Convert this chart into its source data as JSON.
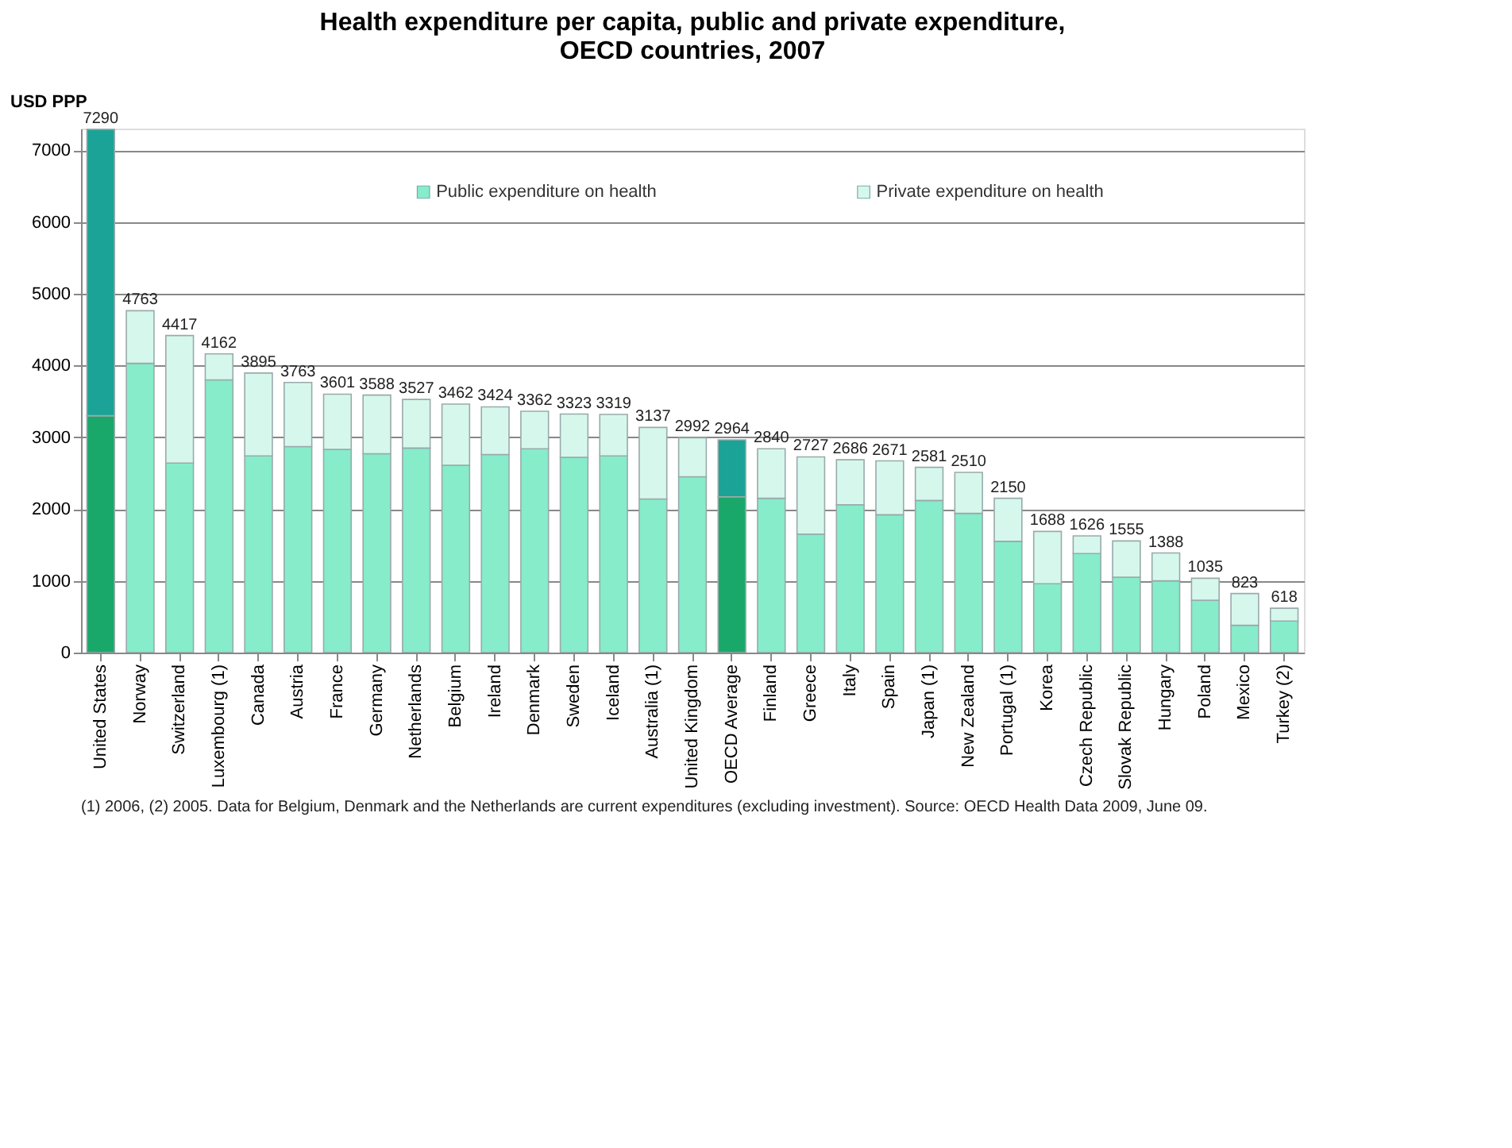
{
  "chart_data": {
    "type": "bar",
    "stacked": true,
    "title": "Health expenditure per capita, public and private expenditure,\nOECD countries, 2007",
    "ylabel": "USD PPP",
    "categories": [
      "United States",
      "Norway",
      "Switzerland",
      "Luxembourg (1)",
      "Canada",
      "Austria",
      "France",
      "Germany",
      "Netherlands",
      "Belgium",
      "Ireland",
      "Denmark",
      "Sweden",
      "Iceland",
      "Australia (1)",
      "United Kingdom",
      "OECD Average",
      "Finland",
      "Greece",
      "Italy",
      "Spain",
      "Japan (1)",
      "New Zealand",
      "Portugal (1)",
      "Korea",
      "Czech Republic",
      "Slovak Republic",
      "Hungary",
      "Poland",
      "Mexico",
      "Turkey (2)"
    ],
    "series": [
      {
        "name": "Public expenditure on health",
        "color": "#86ecca",
        "colors": [
          "#1aa86a",
          "#86ecca",
          "#86ecca",
          "#86ecca",
          "#86ecca",
          "#86ecca",
          "#86ecca",
          "#86ecca",
          "#86ecca",
          "#86ecca",
          "#86ecca",
          "#86ecca",
          "#86ecca",
          "#86ecca",
          "#86ecca",
          "#86ecca",
          "#1aa86a",
          "#86ecca",
          "#86ecca",
          "#86ecca",
          "#86ecca",
          "#86ecca",
          "#86ecca",
          "#86ecca",
          "#86ecca",
          "#86ecca",
          "#86ecca",
          "#86ecca",
          "#86ecca",
          "#86ecca",
          "#86ecca"
        ],
        "values": [
          3300,
          4030,
          2640,
          3800,
          2740,
          2870,
          2830,
          2770,
          2850,
          2610,
          2760,
          2840,
          2720,
          2740,
          2140,
          2450,
          2170,
          2150,
          1650,
          2060,
          1920,
          2120,
          1940,
          1550,
          960,
          1380,
          1050,
          1000,
          730,
          380,
          440
        ]
      },
      {
        "name": "Private expenditure on health",
        "color": "#d6f8ec",
        "colors": [
          "#1aa396",
          "#d6f8ec",
          "#d6f8ec",
          "#d6f8ec",
          "#d6f8ec",
          "#d6f8ec",
          "#d6f8ec",
          "#d6f8ec",
          "#d6f8ec",
          "#d6f8ec",
          "#d6f8ec",
          "#d6f8ec",
          "#d6f8ec",
          "#d6f8ec",
          "#d6f8ec",
          "#d6f8ec",
          "#1aa396",
          "#d6f8ec",
          "#d6f8ec",
          "#d6f8ec",
          "#d6f8ec",
          "#d6f8ec",
          "#d6f8ec",
          "#d6f8ec",
          "#d6f8ec",
          "#d6f8ec",
          "#d6f8ec",
          "#d6f8ec",
          "#d6f8ec",
          "#d6f8ec",
          "#d6f8ec"
        ],
        "values": [
          3990,
          733,
          1777,
          362,
          1155,
          893,
          771,
          818,
          677,
          852,
          664,
          522,
          603,
          579,
          997,
          542,
          794,
          690,
          1077,
          626,
          751,
          461,
          570,
          600,
          728,
          246,
          505,
          388,
          305,
          443,
          178
        ]
      }
    ],
    "totals": [
      "7290",
      "4763",
      "4417",
      "4162",
      "3895",
      "3763",
      "3601",
      "3588",
      "3527",
      "3462",
      "3424",
      "3362",
      "3323",
      "3319",
      "3137",
      "2992",
      "2964",
      "2840",
      "2727",
      "2686",
      "2671",
      "2581",
      "2510",
      "2150",
      "1688",
      "1626",
      "1555",
      "1388",
      "1035",
      "823",
      "618"
    ],
    "ylim": [
      0,
      7300
    ],
    "yticks": [
      0,
      1000,
      2000,
      3000,
      4000,
      5000,
      6000,
      7000
    ],
    "grid": "y",
    "legend": "top",
    "annotations": [
      "(1) 2006, (2) 2005.  Data for Belgium, Denmark and the Netherlands are current expenditures (excluding investment).  Source: OECD Health Data 2009, June 09."
    ]
  }
}
